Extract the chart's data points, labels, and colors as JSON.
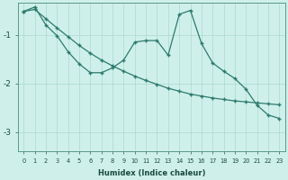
{
  "xlabel": "Humidex (Indice chaleur)",
  "bg_color": "#cff0ea",
  "line_color": "#2d7a6e",
  "grid_color": "#aad8d0",
  "xlim": [
    -0.5,
    23.5
  ],
  "ylim": [
    -3.4,
    -0.35
  ],
  "yticks": [
    -3,
    -2,
    -1
  ],
  "xticks": [
    0,
    1,
    2,
    3,
    4,
    5,
    6,
    7,
    8,
    9,
    10,
    11,
    12,
    13,
    14,
    15,
    16,
    17,
    18,
    19,
    20,
    21,
    22,
    23
  ],
  "line1_x": [
    0,
    1,
    2,
    3,
    4,
    5,
    6,
    7,
    8,
    9,
    10,
    11,
    12,
    13,
    14,
    15,
    16,
    17,
    18,
    19,
    20,
    21,
    22,
    23
  ],
  "line1_y": [
    -0.52,
    -0.48,
    -0.67,
    -0.86,
    -1.04,
    -1.22,
    -1.38,
    -1.52,
    -1.64,
    -1.75,
    -1.85,
    -1.94,
    -2.02,
    -2.1,
    -2.16,
    -2.22,
    -2.26,
    -2.3,
    -2.33,
    -2.36,
    -2.38,
    -2.4,
    -2.42,
    -2.44
  ],
  "line2_x": [
    0,
    1,
    2,
    3,
    4,
    5,
    6,
    7,
    8,
    9,
    10,
    11,
    12,
    13,
    14,
    15,
    16,
    17,
    18,
    19,
    20,
    21,
    22,
    23
  ],
  "line2_y": [
    -0.52,
    -0.43,
    -0.8,
    -1.02,
    -1.35,
    -1.6,
    -1.78,
    -1.78,
    -1.68,
    -1.52,
    -1.15,
    -1.12,
    -1.12,
    -1.42,
    -0.58,
    -0.5,
    -1.18,
    -1.58,
    -1.75,
    -1.9,
    -2.12,
    -2.45,
    -2.65,
    -2.72
  ]
}
